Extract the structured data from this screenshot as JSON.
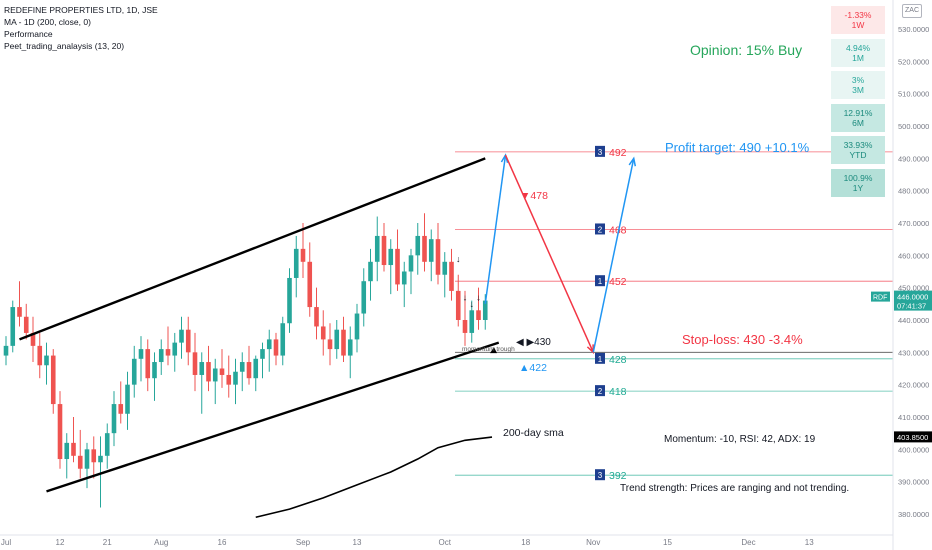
{
  "header": {
    "title": "REDEFINE PROPERTIES LTD, 1D, JSE",
    "indicators": [
      "MA - 1D (200, close, 0)",
      "Performance",
      "Peet_trading_analaysis (13, 20)"
    ],
    "currency": "ZAC"
  },
  "performance": [
    {
      "value": "-1.33%",
      "period": "1W",
      "tone": "neg"
    },
    {
      "value": "4.94%",
      "period": "1M",
      "tone": "pos1"
    },
    {
      "value": "3%",
      "period": "3M",
      "tone": "pos1"
    },
    {
      "value": "12.91%",
      "period": "6M",
      "tone": "pos2"
    },
    {
      "value": "33.93%",
      "period": "YTD",
      "tone": "pos2"
    },
    {
      "value": "100.9%",
      "period": "1Y",
      "tone": "pos3"
    }
  ],
  "annotations": {
    "opinion": "Opinion: 15% Buy",
    "profit_target": "Profit target: 490 +10.1%",
    "stop_loss": "Stop-loss: 430 -3.4%",
    "sma_label": "200-day sma",
    "momentum_trough": "momentum trough",
    "momentum": "Momentum: -10, RSI: 42, ADX: 19",
    "trend": "Trend strength: Prices are ranging and not trending.",
    "label_478": "▼478",
    "label_430": "◀ ▶430",
    "label_422": "▲422"
  },
  "chart_data": {
    "type": "candlestick",
    "symbol": "RDF",
    "last_price": "446.0000",
    "countdown": "07:41:37",
    "sma_value": "403.8500",
    "y_ticks": [
      380,
      390,
      400,
      410,
      420,
      430,
      440,
      450,
      460,
      470,
      480,
      490,
      500,
      510,
      520,
      530
    ],
    "y_tick_labels": [
      "380.0000",
      "390.0000",
      "400.0000",
      "410.0000",
      "420.0000",
      "430.0000",
      "440.0000",
      "450.0000",
      "460.0000",
      "470.0000",
      "480.0000",
      "490.0000",
      "500.0000",
      "510.0000",
      "520.0000",
      "530.0000"
    ],
    "x_ticks": [
      {
        "label": "Jul",
        "bar": 0
      },
      {
        "label": "12",
        "bar": 8
      },
      {
        "label": "21",
        "bar": 15
      },
      {
        "label": "Aug",
        "bar": 23
      },
      {
        "label": "16",
        "bar": 32
      },
      {
        "label": "Sep",
        "bar": 44
      },
      {
        "label": "13",
        "bar": 52
      },
      {
        "label": "Oct",
        "bar": 65
      },
      {
        "label": "18",
        "bar": 77
      },
      {
        "label": "Nov",
        "bar": 87
      },
      {
        "label": "15",
        "bar": 98
      },
      {
        "label": "Dec",
        "bar": 110
      },
      {
        "label": "13",
        "bar": 119
      }
    ],
    "levels": [
      {
        "num": "3",
        "value": 492,
        "label": "492",
        "color": "#f23645"
      },
      {
        "num": "2",
        "value": 468,
        "label": "468",
        "color": "#f23645"
      },
      {
        "num": "1",
        "value": 452,
        "label": "452",
        "color": "#f23645"
      },
      {
        "num": "1",
        "value": 428,
        "label": "428",
        "color": "#22ab94"
      },
      {
        "num": "2",
        "value": 418,
        "label": "418",
        "color": "#22ab94"
      },
      {
        "num": "3",
        "value": 392,
        "label": "392",
        "color": "#22ab94"
      }
    ],
    "candles": [
      [
        429,
        435,
        426,
        432
      ],
      [
        432,
        446,
        430,
        444
      ],
      [
        444,
        452,
        438,
        441
      ],
      [
        441,
        445,
        434,
        436
      ],
      [
        436,
        441,
        427,
        432
      ],
      [
        432,
        436,
        422,
        426
      ],
      [
        426,
        433,
        420,
        429
      ],
      [
        429,
        431,
        411,
        414
      ],
      [
        414,
        418,
        394,
        397
      ],
      [
        397,
        405,
        391,
        402
      ],
      [
        402,
        410,
        396,
        398
      ],
      [
        398,
        406,
        391,
        394
      ],
      [
        394,
        402,
        388,
        400
      ],
      [
        400,
        404,
        391,
        396
      ],
      [
        396,
        404,
        382,
        398
      ],
      [
        398,
        408,
        394,
        405
      ],
      [
        405,
        418,
        401,
        414
      ],
      [
        414,
        421,
        408,
        411
      ],
      [
        411,
        424,
        406,
        420
      ],
      [
        420,
        432,
        416,
        428
      ],
      [
        428,
        435,
        421,
        431
      ],
      [
        431,
        434,
        418,
        422
      ],
      [
        422,
        430,
        415,
        427
      ],
      [
        427,
        434,
        423,
        431
      ],
      [
        431,
        438,
        426,
        429
      ],
      [
        429,
        436,
        424,
        433
      ],
      [
        433,
        441,
        428,
        437
      ],
      [
        437,
        441,
        426,
        430
      ],
      [
        430,
        436,
        418,
        423
      ],
      [
        423,
        430,
        411,
        427
      ],
      [
        427,
        432,
        418,
        421
      ],
      [
        421,
        428,
        414,
        425
      ],
      [
        425,
        431,
        419,
        423
      ],
      [
        423,
        429,
        416,
        420
      ],
      [
        420,
        428,
        414,
        424
      ],
      [
        424,
        430,
        418,
        427
      ],
      [
        427,
        432,
        420,
        422
      ],
      [
        422,
        429,
        418,
        428
      ],
      [
        428,
        433,
        422,
        431
      ],
      [
        431,
        437,
        424,
        434
      ],
      [
        434,
        436,
        426,
        429
      ],
      [
        429,
        441,
        426,
        439
      ],
      [
        439,
        456,
        436,
        453
      ],
      [
        453,
        466,
        447,
        462
      ],
      [
        462,
        470,
        453,
        458
      ],
      [
        458,
        464,
        441,
        444
      ],
      [
        444,
        450,
        434,
        438
      ],
      [
        438,
        443,
        429,
        434
      ],
      [
        434,
        439,
        426,
        431
      ],
      [
        431,
        440,
        428,
        437
      ],
      [
        437,
        441,
        427,
        429
      ],
      [
        429,
        438,
        422,
        434
      ],
      [
        434,
        445,
        430,
        442
      ],
      [
        442,
        456,
        438,
        452
      ],
      [
        452,
        462,
        446,
        458
      ],
      [
        458,
        472,
        452,
        466
      ],
      [
        466,
        470,
        455,
        457
      ],
      [
        457,
        465,
        448,
        462
      ],
      [
        462,
        468,
        449,
        451
      ],
      [
        451,
        458,
        444,
        455
      ],
      [
        455,
        462,
        448,
        460
      ],
      [
        460,
        470,
        454,
        466
      ],
      [
        466,
        473,
        455,
        458
      ],
      [
        458,
        468,
        452,
        465
      ],
      [
        465,
        470,
        451,
        454
      ],
      [
        454,
        461,
        447,
        458
      ],
      [
        458,
        462,
        446,
        449
      ],
      [
        449,
        454,
        438,
        440
      ],
      [
        440,
        449,
        432,
        436
      ],
      [
        436,
        446,
        433,
        443
      ],
      [
        443,
        450,
        437,
        440
      ],
      [
        440,
        448,
        437,
        446
      ]
    ],
    "channel": {
      "upper": [
        [
          2,
          434
        ],
        [
          71,
          490
        ]
      ],
      "lower": [
        [
          6,
          387
        ],
        [
          73,
          433
        ]
      ]
    },
    "projection": {
      "rise": [
        [
          71,
          445
        ],
        [
          74,
          491
        ]
      ],
      "fall": [
        [
          74,
          491
        ],
        [
          87,
          430
        ]
      ],
      "rebound": [
        [
          87,
          430
        ],
        [
          93,
          490
        ]
      ]
    }
  }
}
